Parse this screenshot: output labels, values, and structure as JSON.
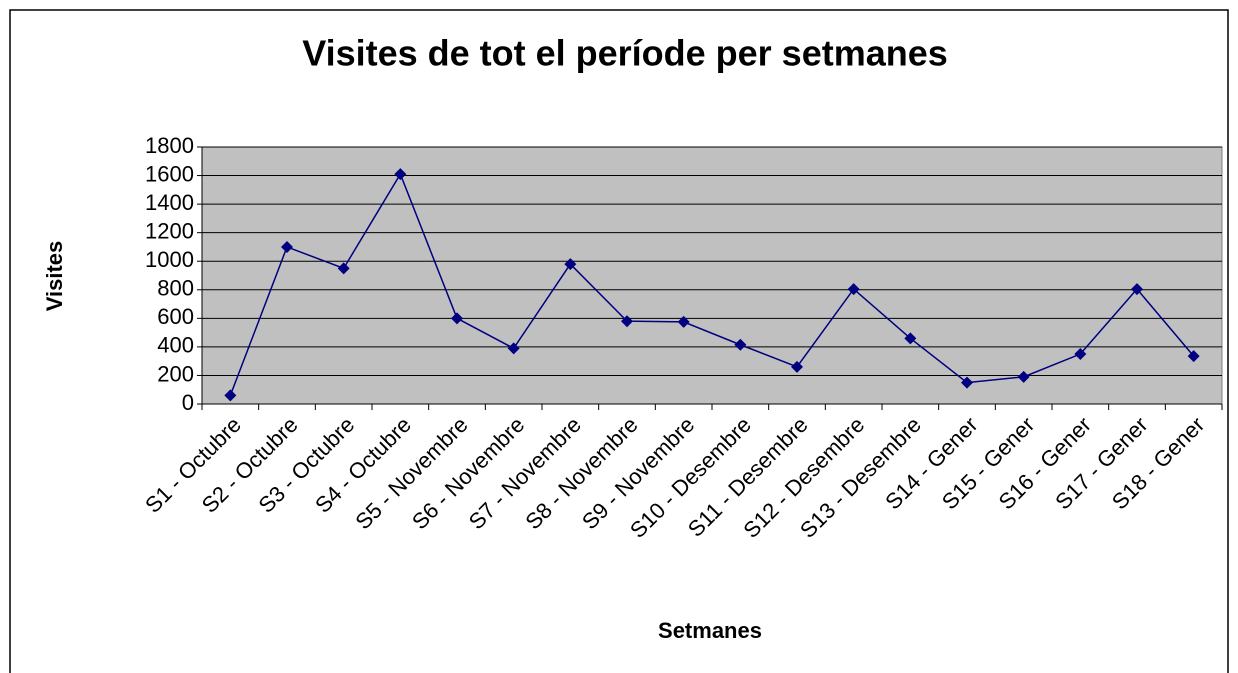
{
  "chart_data": {
    "type": "line",
    "title": "Visites de tot el període per setmanes",
    "x_label": "Setmanes",
    "y_label": "Visites",
    "categories": [
      "S1 - Octubre",
      "S2 - Octubre",
      "S3 - Octubre",
      "S4 - Octubre",
      "S5 - Novembre",
      "S6 - Novembre",
      "S7 - Novembre",
      "S8 - Novembre",
      "S9 - Novembre",
      "S10 - Desembre",
      "S11 - Desembre",
      "S12 - Desembre",
      "S13 - Desembre",
      "S14 - Gener",
      "S15 - Gener",
      "S16 - Gener",
      "S17 - Gener",
      "S18 - Gener"
    ],
    "series": [
      {
        "name": "Visites",
        "color": "#000080",
        "values": [
          60,
          1100,
          950,
          1610,
          600,
          390,
          980,
          580,
          575,
          415,
          260,
          805,
          460,
          150,
          190,
          350,
          805,
          335
        ]
      }
    ],
    "ylim": [
      0,
      1800
    ],
    "yticks": [
      0,
      200,
      400,
      600,
      800,
      1000,
      1200,
      1400,
      1600,
      1800
    ],
    "grid": true,
    "plot_background": "#c0c0c0"
  }
}
